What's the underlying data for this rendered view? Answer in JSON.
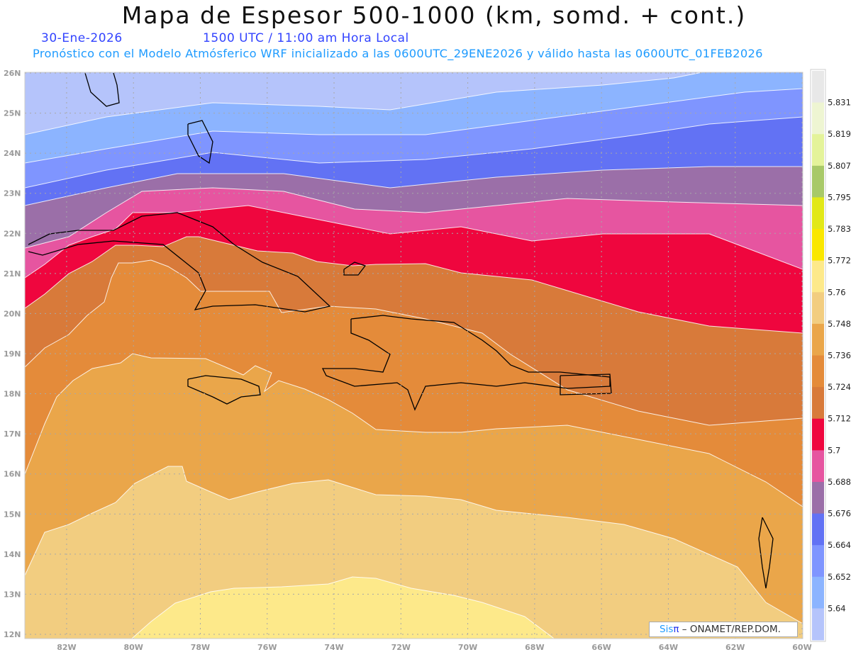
{
  "header": {
    "title": "Mapa de Espesor 500-1000 (km, somd. + cont.)",
    "date": "30-Ene-2026",
    "time": "1500 UTC / 11:00 am Hora Local",
    "info": "Pronóstico con el Modelo Atmósferico WRF inicializado a las 0600UTC_29ENE2026 y válido hasta las  0600UTC_01FEB2026"
  },
  "axes": {
    "lat_labels": [
      "26N",
      "25N",
      "24N",
      "23N",
      "22N",
      "21N",
      "20N",
      "19N",
      "18N",
      "17N",
      "16N",
      "15N",
      "14N",
      "13N",
      "12N"
    ],
    "lon_labels": [
      "82W",
      "80W",
      "78W",
      "76W",
      "74W",
      "72W",
      "70W",
      "68W",
      "66W",
      "64W",
      "62W",
      "60W"
    ]
  },
  "colorbar": {
    "colors": [
      "#e8e8e8",
      "#eef5d2",
      "#e4f39a",
      "#a8c968",
      "#e2e818",
      "#fae700",
      "#fde98a",
      "#f2cd80",
      "#eaa64a",
      "#e48b3a",
      "#d87a3a",
      "#ef063e",
      "#e655a0",
      "#9b6fa8",
      "#6272f4",
      "#7f95ff",
      "#8cb4ff",
      "#b5c4fb"
    ],
    "labels": [
      "5.831",
      "5.819",
      "5.807",
      "5.795",
      "5.783",
      "5.772",
      "5.76",
      "5.748",
      "5.736",
      "5.724",
      "5.712",
      "5.7",
      "5.688",
      "5.676",
      "5.664",
      "5.652",
      "5.64"
    ]
  },
  "bands": [
    "#b5c4fb",
    "#8cb4ff",
    "#7f95ff",
    "#6272f4",
    "#9b6fa8",
    "#e655a0",
    "#ef063e",
    "#d87a3a",
    "#e48b3a",
    "#eaa64a",
    "#f2cd80",
    "#fde98a"
  ],
  "logo": {
    "brand": "Sis",
    "pi": "π",
    "text": "– ONAMET/REP.DOM."
  }
}
